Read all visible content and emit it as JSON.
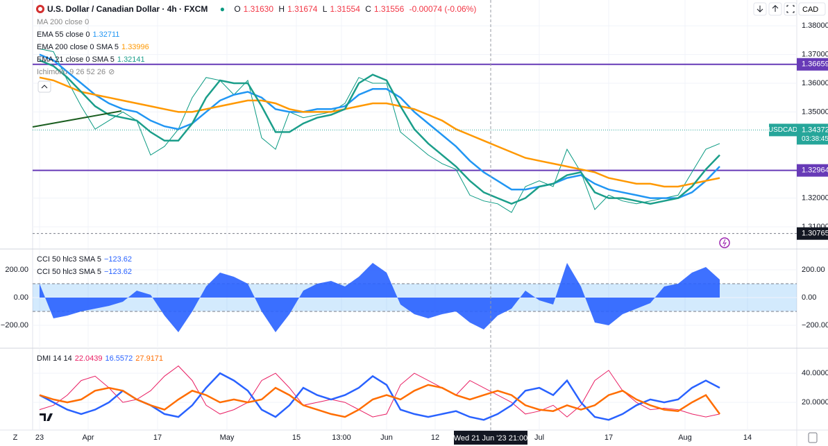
{
  "header": {
    "title": "U.S. Dollar / Canadian Dollar · 4h · FXCM",
    "o_label": "O",
    "open": "1.31630",
    "h_label": "H",
    "high": "1.31674",
    "l_label": "L",
    "low": "1.31554",
    "c_label": "C",
    "close": "1.31556",
    "change": "-0.00074 (-0.06%)",
    "currency": "CAD",
    "zoom": "Z"
  },
  "chart_data": [
    {
      "type": "line",
      "hidden_indicators": [
        "MA 200 close 0",
        "Ichimoku 9 26 52 26"
      ],
      "x": [
        0,
        2,
        4,
        6,
        8,
        10,
        12,
        14,
        16,
        18,
        20,
        22,
        24,
        26,
        28,
        30,
        32,
        34,
        36,
        38,
        40,
        42,
        44,
        46,
        48,
        50,
        52,
        54,
        56,
        58,
        60,
        62,
        64,
        66,
        68,
        70,
        72,
        74,
        76,
        78,
        80,
        82,
        84,
        86,
        88,
        90,
        92,
        94,
        96,
        98
      ],
      "xlim": [
        -1,
        109.1
      ],
      "xticks": [
        {
          "value": 0,
          "label": "23"
        },
        {
          "value": 7,
          "label": "Apr"
        },
        {
          "value": 17,
          "label": "17"
        },
        {
          "value": 27,
          "label": "May"
        },
        {
          "value": 37,
          "label": "15"
        },
        {
          "value": 43.5,
          "label": "13:00"
        },
        {
          "value": 50,
          "label": "Jun"
        },
        {
          "value": 57,
          "label": "12"
        },
        {
          "value": 72,
          "label": "Jul"
        },
        {
          "value": 82,
          "label": "17"
        },
        {
          "value": 93,
          "label": "Aug"
        },
        {
          "value": 102,
          "label": "14"
        }
      ],
      "crosshair": {
        "value": 65,
        "label": "Wed 21 Jun '23  21:00"
      },
      "ylim": [
        1.3025,
        1.389
      ],
      "yticks": [
        {
          "value": 1.38,
          "label": "1.38000"
        },
        {
          "value": 1.37,
          "label": "1.37000"
        },
        {
          "value": 1.36,
          "label": "1.36000"
        },
        {
          "value": 1.35,
          "label": "1.35000"
        },
        {
          "value": 1.32,
          "label": "1.32000"
        },
        {
          "value": 1.31,
          "label": "1.31000"
        }
      ],
      "hlines": [
        {
          "value": 1.36659,
          "color": "#673ab7"
        },
        {
          "value": 1.32964,
          "color": "#673ab7"
        }
      ],
      "last": {
        "symbol": "USDCAD",
        "value": 1.34372,
        "countdown": "03:38:45",
        "color": "#26a69a"
      },
      "low_marker": 1.30765,
      "series": [
        {
          "color": "#089981",
          "values": [
            1.372,
            1.371,
            1.361,
            1.352,
            1.344,
            1.347,
            1.35,
            1.347,
            1.335,
            1.338,
            1.344,
            1.355,
            1.362,
            1.361,
            1.356,
            1.361,
            1.341,
            1.337,
            1.35,
            1.348,
            1.349,
            1.35,
            1.353,
            1.362,
            1.36,
            1.36,
            1.343,
            1.339,
            1.335,
            1.332,
            1.33,
            1.321,
            1.319,
            1.318,
            1.315,
            1.324,
            1.326,
            1.324,
            1.337,
            1.329,
            1.316,
            1.321,
            1.319,
            1.318,
            1.319,
            1.32,
            1.321,
            1.329,
            1.337,
            1.339
          ]
        },
        {
          "name": "EMA 55 close 0",
          "color": "#2196f3",
          "legend_value": 1.32711,
          "values": [
            1.37,
            1.368,
            1.364,
            1.36,
            1.356,
            1.353,
            1.351,
            1.35,
            1.347,
            1.345,
            1.344,
            1.346,
            1.35,
            1.354,
            1.356,
            1.357,
            1.355,
            1.351,
            1.35,
            1.35,
            1.351,
            1.351,
            1.352,
            1.356,
            1.358,
            1.358,
            1.355,
            1.35,
            1.346,
            1.342,
            1.338,
            1.333,
            1.329,
            1.326,
            1.323,
            1.323,
            1.324,
            1.325,
            1.327,
            1.328,
            1.325,
            1.323,
            1.322,
            1.321,
            1.32,
            1.32,
            1.32,
            1.322,
            1.326,
            1.331
          ]
        },
        {
          "name": "EMA 200 close 0 SMA 5",
          "color": "#ff9800",
          "legend_value": 1.33996,
          "values": [
            1.362,
            1.361,
            1.359,
            1.357,
            1.356,
            1.355,
            1.354,
            1.353,
            1.352,
            1.351,
            1.35,
            1.35,
            1.351,
            1.352,
            1.353,
            1.354,
            1.354,
            1.353,
            1.351,
            1.35,
            1.35,
            1.35,
            1.351,
            1.352,
            1.353,
            1.353,
            1.352,
            1.351,
            1.349,
            1.347,
            1.344,
            1.342,
            1.34,
            1.338,
            1.336,
            1.334,
            1.333,
            1.332,
            1.331,
            1.33,
            1.329,
            1.327,
            1.326,
            1.325,
            1.325,
            1.324,
            1.324,
            1.325,
            1.326,
            1.327
          ]
        },
        {
          "name": "EMA 21 close 0 SMA 5",
          "color": "#1b9e8a",
          "legend_value": 1.32141,
          "values": [
            1.368,
            1.366,
            1.362,
            1.357,
            1.352,
            1.349,
            1.348,
            1.347,
            1.343,
            1.34,
            1.34,
            1.346,
            1.355,
            1.361,
            1.36,
            1.36,
            1.352,
            1.343,
            1.343,
            1.346,
            1.348,
            1.349,
            1.351,
            1.36,
            1.363,
            1.361,
            1.352,
            1.344,
            1.339,
            1.335,
            1.331,
            1.326,
            1.322,
            1.32,
            1.318,
            1.32,
            1.324,
            1.325,
            1.328,
            1.329,
            1.322,
            1.32,
            1.32,
            1.319,
            1.318,
            1.319,
            1.32,
            1.324,
            1.33,
            1.335
          ]
        }
      ]
    },
    {
      "type": "area",
      "legend": [
        {
          "name": "CCI 50 hlc3 SMA 5",
          "value": {
            "value": -123.62,
            "label": "−123.62"
          }
        },
        {
          "name": "CCI 50 hlc3 SMA 5",
          "value": {
            "value": -123.62,
            "label": "−123.62"
          }
        }
      ],
      "x": [
        0,
        2,
        4,
        6,
        8,
        10,
        12,
        14,
        16,
        18,
        20,
        22,
        24,
        26,
        28,
        30,
        32,
        34,
        36,
        38,
        40,
        42,
        44,
        46,
        48,
        50,
        52,
        54,
        56,
        58,
        60,
        62,
        64,
        66,
        68,
        70,
        72,
        74,
        76,
        78,
        80,
        82,
        84,
        86,
        88,
        90,
        92,
        94,
        96,
        98
      ],
      "ylim": [
        -355,
        345
      ],
      "yticks": [
        {
          "value": 200,
          "label": "200.00"
        },
        {
          "value": 0,
          "label": "0.00"
        },
        {
          "value": -200,
          "label": "−200.00"
        }
      ],
      "band": [
        -100,
        100
      ],
      "color": "#2962ff",
      "values": [
        100,
        -150,
        -130,
        -100,
        -80,
        -60,
        -30,
        50,
        20,
        -130,
        -250,
        -100,
        80,
        180,
        150,
        100,
        -100,
        -250,
        -120,
        50,
        100,
        120,
        80,
        150,
        250,
        180,
        -50,
        -120,
        -150,
        -120,
        -100,
        -180,
        -230,
        -130,
        -80,
        50,
        -20,
        -50,
        250,
        80,
        -180,
        -200,
        -120,
        -80,
        -40,
        80,
        100,
        180,
        220,
        130
      ]
    },
    {
      "type": "line",
      "title": "DMI 14 14",
      "x": [
        0,
        2,
        4,
        6,
        8,
        10,
        12,
        14,
        16,
        18,
        20,
        22,
        24,
        26,
        28,
        30,
        32,
        34,
        36,
        38,
        40,
        42,
        44,
        46,
        48,
        50,
        52,
        54,
        56,
        58,
        60,
        62,
        64,
        66,
        68,
        70,
        72,
        74,
        76,
        78,
        80,
        82,
        84,
        86,
        88,
        90,
        92,
        94,
        96,
        98
      ],
      "ylim": [
        1,
        56.7
      ],
      "yticks": [
        {
          "value": 40,
          "label": "40.0000"
        },
        {
          "value": 20,
          "label": "20.0000"
        }
      ],
      "series": [
        {
          "color": "#e91e63",
          "legend_value": 22.0439,
          "values": [
            15,
            18,
            25,
            35,
            38,
            30,
            20,
            22,
            28,
            38,
            45,
            35,
            18,
            12,
            15,
            20,
            35,
            40,
            30,
            18,
            20,
            22,
            20,
            15,
            10,
            12,
            32,
            40,
            35,
            30,
            25,
            35,
            30,
            25,
            20,
            12,
            14,
            18,
            10,
            18,
            35,
            42,
            28,
            20,
            15,
            16,
            15,
            12,
            10,
            12
          ]
        },
        {
          "color": "#2962ff",
          "legend_value": 16.5572,
          "values": [
            25,
            20,
            15,
            12,
            15,
            20,
            28,
            22,
            18,
            12,
            10,
            18,
            30,
            40,
            35,
            28,
            15,
            10,
            18,
            30,
            25,
            22,
            25,
            30,
            38,
            32,
            15,
            12,
            10,
            12,
            14,
            10,
            8,
            12,
            18,
            28,
            30,
            25,
            35,
            20,
            10,
            8,
            12,
            18,
            22,
            20,
            22,
            30,
            35,
            30
          ]
        },
        {
          "color": "#ff6d00",
          "legend_value": 27.9171,
          "values": [
            25,
            22,
            20,
            22,
            28,
            30,
            28,
            22,
            18,
            15,
            22,
            28,
            25,
            20,
            22,
            20,
            22,
            30,
            25,
            18,
            15,
            12,
            10,
            15,
            22,
            25,
            22,
            28,
            32,
            30,
            25,
            22,
            25,
            28,
            25,
            18,
            15,
            14,
            18,
            15,
            18,
            25,
            28,
            22,
            18,
            15,
            14,
            20,
            25,
            12
          ]
        }
      ]
    }
  ]
}
